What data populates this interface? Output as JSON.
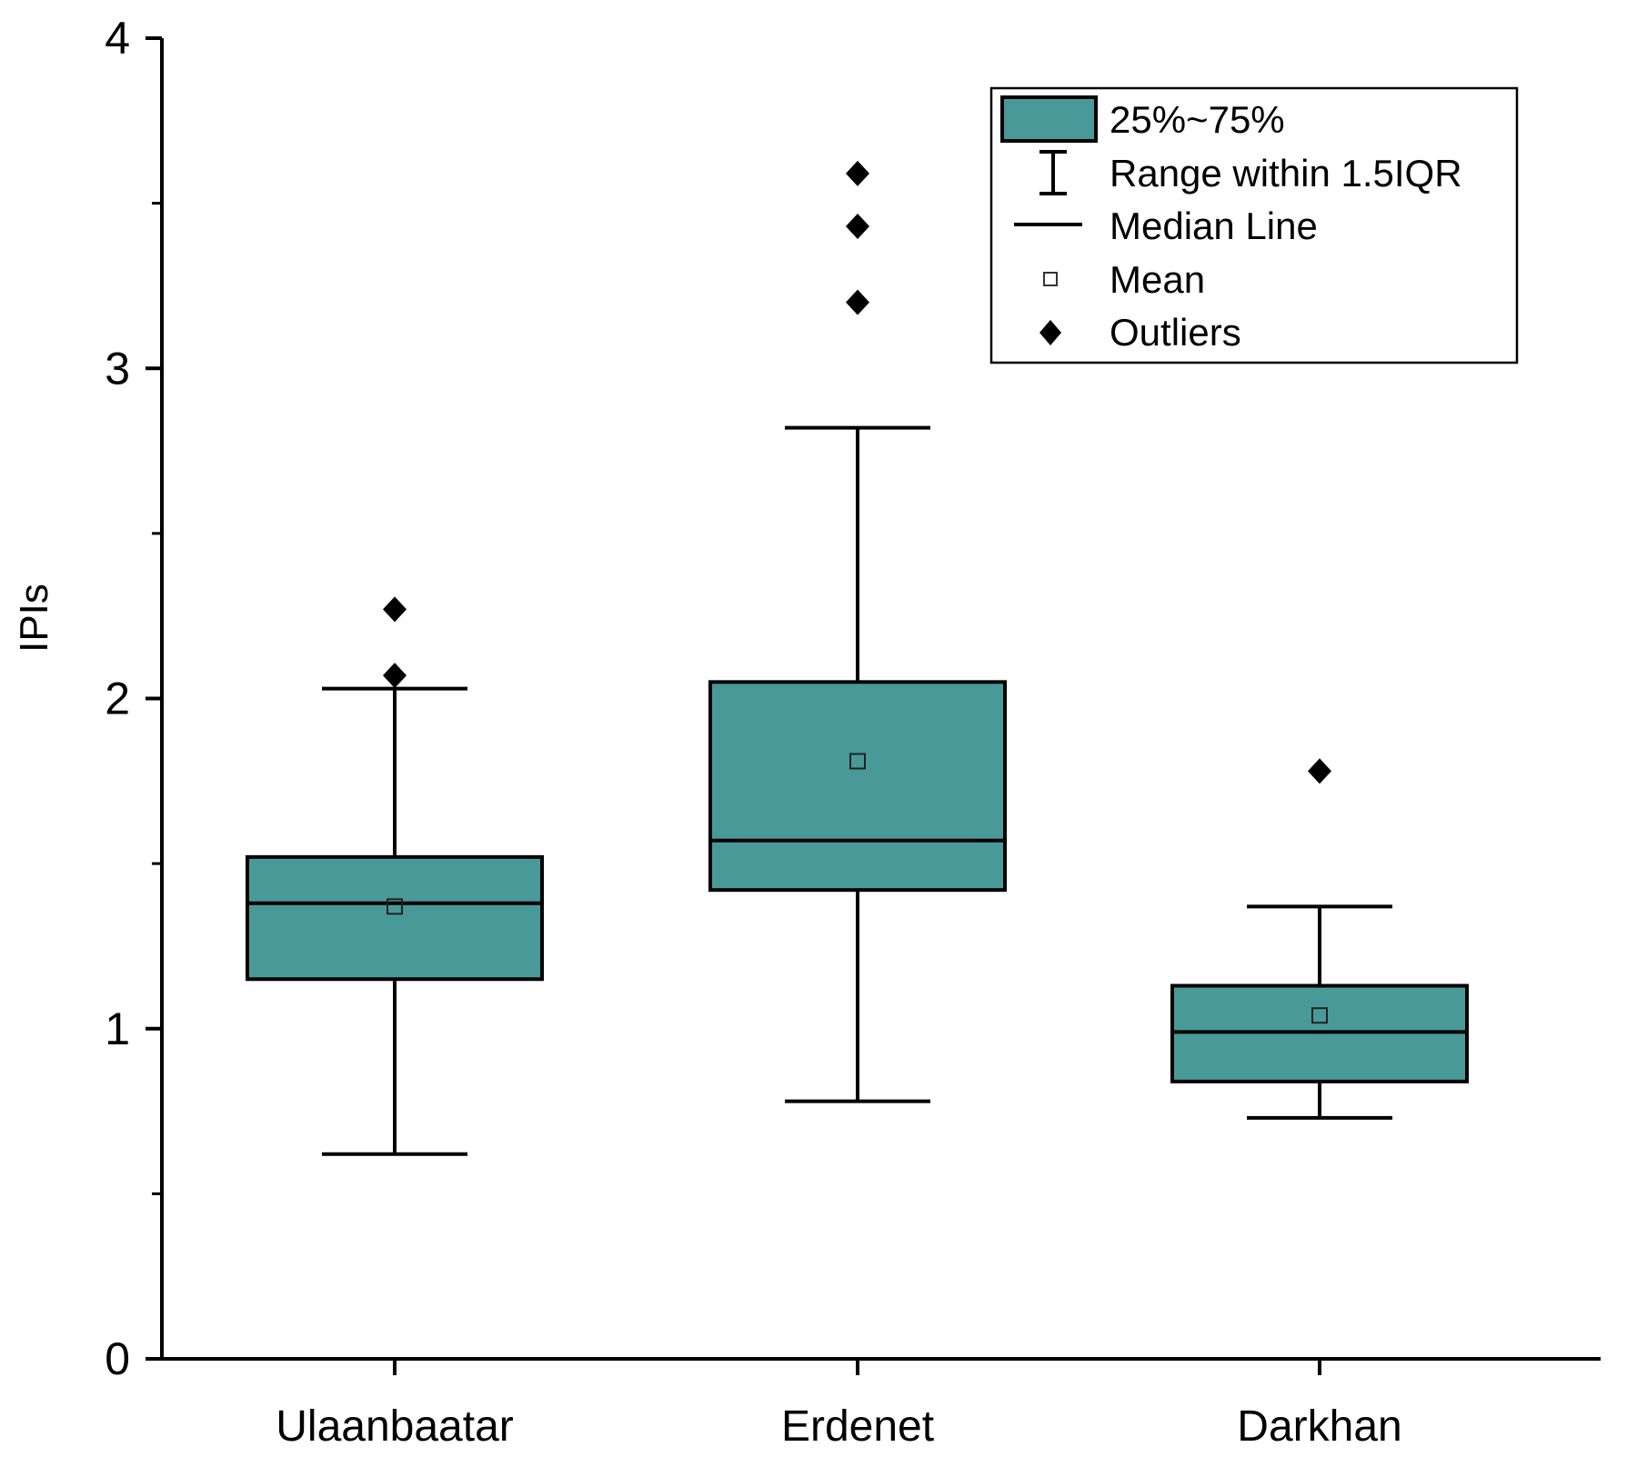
{
  "chart_data": {
    "type": "box",
    "ylabel": "IPIs",
    "xlabel": "",
    "ylim": [
      0,
      4
    ],
    "yticks": [
      "0",
      "1",
      "2",
      "3",
      "4"
    ],
    "categories": [
      "Ulaanbaatar",
      "Erdenet",
      "Darkhan"
    ],
    "boxes": [
      {
        "category": "Ulaanbaatar",
        "whisker_low": 0.62,
        "q1": 1.15,
        "median": 1.38,
        "q3": 1.52,
        "whisker_high": 2.03,
        "mean": 1.37,
        "outliers": [
          2.07,
          2.27
        ]
      },
      {
        "category": "Erdenet",
        "whisker_low": 0.78,
        "q1": 1.42,
        "median": 1.57,
        "q3": 2.05,
        "whisker_high": 2.82,
        "mean": 1.81,
        "outliers": [
          3.2,
          3.43,
          3.59
        ]
      },
      {
        "category": "Darkhan",
        "whisker_low": 0.73,
        "q1": 0.84,
        "median": 0.99,
        "q3": 1.13,
        "whisker_high": 1.37,
        "mean": 1.04,
        "outliers": [
          1.78
        ]
      }
    ],
    "legend": {
      "placement": "top-right",
      "items": [
        "25%~75%",
        "Range within 1.5IQR",
        "Median Line",
        "Mean",
        "Outliers"
      ]
    },
    "grid": false,
    "colors": {
      "box": "#4a9999",
      "line": "#000000",
      "mean_marker": "#ffffff"
    }
  }
}
